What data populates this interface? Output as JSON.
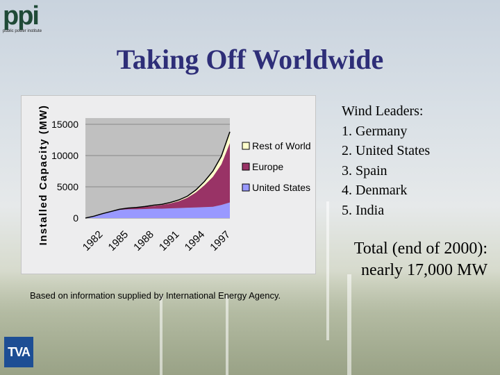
{
  "logo": {
    "mark": "ppi",
    "subtitle": "public power institute"
  },
  "title": "Taking Off Worldwide",
  "leaders": {
    "heading": "Wind Leaders:",
    "items": [
      "1. Germany",
      "2. United States",
      "3. Spain",
      "4. Denmark",
      "5. India"
    ]
  },
  "total": {
    "line1": "Total (end of 2000):",
    "line2": "nearly 17,000 MW"
  },
  "credit": "Based on information supplied by International Energy Agency.",
  "tva_logo": "TVA",
  "colors": {
    "title": "#2e2e78",
    "rest": "#ffffcc",
    "europe": "#993366",
    "us": "#9999ff",
    "plot_bg": "#c0c0c0"
  },
  "chart_data": {
    "type": "area",
    "stacked": true,
    "ylabel": "Installed Capacity (MW)",
    "ylim": [
      0,
      16000
    ],
    "yticks": [
      "0",
      "5000",
      "10000",
      "15000"
    ],
    "ytick_values": [
      0,
      5000,
      10000,
      15000
    ],
    "x": [
      1982,
      1983,
      1984,
      1985,
      1986,
      1987,
      1988,
      1989,
      1990,
      1991,
      1992,
      1993,
      1994,
      1995,
      1996,
      1997,
      1998,
      1999
    ],
    "xtick_labels": [
      "1982",
      "1985",
      "1988",
      "1991",
      "1994",
      "1997"
    ],
    "xtick_values": [
      1982,
      1985,
      1988,
      1991,
      1994,
      1997
    ],
    "legend_position": "right",
    "series": [
      {
        "name": "United States",
        "values": [
          0,
          300,
          700,
          1000,
          1300,
          1400,
          1400,
          1450,
          1500,
          1500,
          1550,
          1600,
          1650,
          1700,
          1750,
          1800,
          2100,
          2500
        ]
      },
      {
        "name": "Europe",
        "values": [
          0,
          0,
          0,
          50,
          100,
          200,
          250,
          350,
          450,
          600,
          800,
          1100,
          1600,
          2400,
          3500,
          4800,
          6500,
          9500
        ]
      },
      {
        "name": "Rest of World",
        "values": [
          0,
          0,
          0,
          0,
          0,
          0,
          50,
          50,
          100,
          100,
          150,
          200,
          250,
          400,
          600,
          900,
          1300,
          1800
        ]
      }
    ]
  }
}
